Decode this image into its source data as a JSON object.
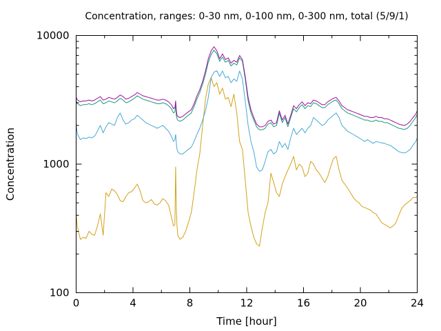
{
  "chart_data": {
    "type": "line",
    "title": "Concentration, ranges: 0-30 nm, 0-100 nm, 0-300 nm, total (5/9/1)",
    "xlabel": "Time [hour]",
    "ylabel": "Concentration",
    "xlim": [
      0,
      24
    ],
    "ylim": [
      100,
      10000
    ],
    "yscale": "log",
    "grid": false,
    "legend": "none",
    "x_ticks": [
      0,
      4,
      8,
      12,
      16,
      20,
      24
    ],
    "x_tick_labels": [
      "0",
      "4",
      "8",
      "12",
      "16",
      "20",
      "24"
    ],
    "y_ticks": [
      100,
      1000,
      10000
    ],
    "y_tick_labels": [
      "100",
      "1000",
      "10000"
    ],
    "x_minor_ticks": [
      2,
      6,
      10,
      14,
      18,
      22
    ],
    "y_minor_ticks": [
      200,
      300,
      400,
      500,
      600,
      700,
      800,
      900,
      2000,
      3000,
      4000,
      5000,
      6000,
      7000,
      8000,
      9000
    ],
    "series": [
      {
        "color": "#d4a017",
        "x": [
          0,
          0.1,
          0.3,
          0.5,
          0.7,
          0.9,
          1.1,
          1.3,
          1.5,
          1.7,
          1.9,
          2.1,
          2.3,
          2.5,
          2.7,
          2.9,
          3.1,
          3.3,
          3.5,
          3.7,
          3.9,
          4.1,
          4.3,
          4.5,
          4.7,
          4.9,
          5.1,
          5.3,
          5.5,
          5.7,
          5.9,
          6.1,
          6.3,
          6.5,
          6.7,
          6.85,
          6.95,
          7.0,
          7.05,
          7.1,
          7.15,
          7.3,
          7.5,
          7.7,
          7.9,
          8.1,
          8.3,
          8.5,
          8.7,
          8.9,
          9.1,
          9.3,
          9.5,
          9.7,
          9.9,
          10.1,
          10.3,
          10.5,
          10.7,
          10.9,
          11.1,
          11.3,
          11.5,
          11.7,
          11.9,
          12.1,
          12.3,
          12.5,
          12.7,
          12.9,
          13.1,
          13.3,
          13.5,
          13.7,
          13.9,
          14.1,
          14.3,
          14.5,
          14.7,
          14.9,
          15.1,
          15.3,
          15.5,
          15.7,
          15.9,
          16.1,
          16.3,
          16.5,
          16.7,
          16.9,
          17.1,
          17.3,
          17.5,
          17.7,
          17.9,
          18.1,
          18.3,
          18.5,
          18.7,
          18.9,
          19.1,
          19.3,
          19.5,
          19.7,
          19.9,
          20.1,
          20.3,
          20.5,
          20.7,
          20.9,
          21.1,
          21.3,
          21.5,
          21.7,
          21.9,
          22.1,
          22.3,
          22.5,
          22.7,
          22.9,
          23.1,
          23.3,
          23.5,
          23.7,
          23.9,
          24
        ],
        "values": [
          400,
          320,
          260,
          270,
          265,
          300,
          285,
          280,
          330,
          410,
          280,
          600,
          560,
          640,
          620,
          580,
          520,
          510,
          560,
          600,
          610,
          650,
          700,
          620,
          520,
          500,
          510,
          530,
          490,
          480,
          500,
          540,
          520,
          480,
          390,
          330,
          340,
          950,
          450,
          330,
          280,
          260,
          270,
          300,
          350,
          420,
          600,
          900,
          1200,
          2000,
          3200,
          4200,
          4700,
          4000,
          4300,
          3500,
          3900,
          3200,
          3300,
          2800,
          3500,
          2500,
          1500,
          1300,
          750,
          420,
          330,
          270,
          240,
          230,
          320,
          420,
          500,
          850,
          720,
          600,
          560,
          700,
          800,
          900,
          1000,
          1150,
          900,
          1000,
          950,
          800,
          850,
          1050,
          1000,
          900,
          850,
          780,
          720,
          800,
          950,
          1100,
          1150,
          900,
          750,
          700,
          650,
          600,
          550,
          520,
          500,
          470,
          460,
          450,
          440,
          420,
          410,
          380,
          350,
          340,
          330,
          320,
          330,
          350,
          400,
          450,
          480,
          500,
          520,
          550,
          550,
          560
        ],
        "stroke_width": 1
      },
      {
        "color": "#45a9d4",
        "x": [
          0,
          0.1,
          0.3,
          0.5,
          0.7,
          0.9,
          1.1,
          1.3,
          1.5,
          1.7,
          1.9,
          2.1,
          2.3,
          2.5,
          2.7,
          2.9,
          3.1,
          3.3,
          3.5,
          3.7,
          3.9,
          4.1,
          4.3,
          4.5,
          4.7,
          4.9,
          5.1,
          5.3,
          5.5,
          5.7,
          5.9,
          6.1,
          6.3,
          6.5,
          6.7,
          6.85,
          6.95,
          7.0,
          7.05,
          7.1,
          7.15,
          7.3,
          7.5,
          7.7,
          7.9,
          8.1,
          8.3,
          8.5,
          8.7,
          8.9,
          9.1,
          9.3,
          9.5,
          9.7,
          9.9,
          10.1,
          10.3,
          10.5,
          10.7,
          10.9,
          11.1,
          11.3,
          11.5,
          11.7,
          11.9,
          12.1,
          12.3,
          12.5,
          12.7,
          12.9,
          13.1,
          13.3,
          13.5,
          13.7,
          13.9,
          14.1,
          14.3,
          14.5,
          14.7,
          14.9,
          15.1,
          15.3,
          15.5,
          15.7,
          15.9,
          16.1,
          16.3,
          16.5,
          16.7,
          16.9,
          17.1,
          17.3,
          17.5,
          17.7,
          17.9,
          18.1,
          18.3,
          18.5,
          18.7,
          18.9,
          19.1,
          19.3,
          19.5,
          19.7,
          19.9,
          20.1,
          20.3,
          20.5,
          20.7,
          20.9,
          21.1,
          21.3,
          21.5,
          21.7,
          21.9,
          22.1,
          22.3,
          22.5,
          22.7,
          22.9,
          23.1,
          23.3,
          23.5,
          23.7,
          23.9,
          24
        ],
        "values": [
          2000,
          1700,
          1550,
          1600,
          1580,
          1620,
          1600,
          1650,
          1800,
          2000,
          1750,
          1950,
          2100,
          2050,
          2000,
          2300,
          2500,
          2200,
          2050,
          2100,
          2200,
          2250,
          2400,
          2300,
          2200,
          2100,
          2050,
          2000,
          1950,
          1900,
          1950,
          2000,
          1900,
          1800,
          1650,
          1500,
          1550,
          1700,
          1450,
          1300,
          1250,
          1200,
          1200,
          1250,
          1300,
          1350,
          1500,
          1700,
          1900,
          2200,
          2600,
          3300,
          4700,
          5200,
          5300,
          4800,
          5300,
          4700,
          4800,
          4300,
          4600,
          4400,
          5300,
          4600,
          3100,
          2000,
          1500,
          1250,
          950,
          880,
          900,
          1050,
          1250,
          1300,
          1200,
          1250,
          1500,
          1350,
          1450,
          1300,
          1600,
          1900,
          1700,
          1800,
          1900,
          1750,
          1900,
          2000,
          2300,
          2200,
          2100,
          2000,
          2050,
          2200,
          2300,
          2400,
          2500,
          2300,
          2000,
          1900,
          1800,
          1750,
          1700,
          1650,
          1600,
          1550,
          1500,
          1550,
          1500,
          1450,
          1500,
          1480,
          1460,
          1450,
          1420,
          1400,
          1350,
          1300,
          1250,
          1230,
          1220,
          1250,
          1300,
          1400,
          1500,
          1600
        ],
        "stroke_width": 1
      },
      {
        "color": "#1a9a78",
        "x": [
          0,
          0.1,
          0.3,
          0.5,
          0.7,
          0.9,
          1.1,
          1.3,
          1.5,
          1.7,
          1.9,
          2.1,
          2.3,
          2.5,
          2.7,
          2.9,
          3.1,
          3.3,
          3.5,
          3.7,
          3.9,
          4.1,
          4.3,
          4.5,
          4.7,
          4.9,
          5.1,
          5.3,
          5.5,
          5.7,
          5.9,
          6.1,
          6.3,
          6.5,
          6.7,
          6.85,
          6.95,
          7.0,
          7.05,
          7.1,
          7.15,
          7.3,
          7.5,
          7.7,
          7.9,
          8.1,
          8.3,
          8.5,
          8.7,
          8.9,
          9.1,
          9.3,
          9.5,
          9.7,
          9.9,
          10.1,
          10.3,
          10.5,
          10.7,
          10.9,
          11.1,
          11.3,
          11.5,
          11.7,
          11.9,
          12.1,
          12.3,
          12.5,
          12.7,
          12.9,
          13.1,
          13.3,
          13.5,
          13.7,
          13.9,
          14.1,
          14.3,
          14.5,
          14.7,
          14.9,
          15.1,
          15.3,
          15.5,
          15.7,
          15.9,
          16.1,
          16.3,
          16.5,
          16.7,
          16.9,
          17.1,
          17.3,
          17.5,
          17.7,
          17.9,
          18.1,
          18.3,
          18.5,
          18.7,
          18.9,
          19.1,
          19.3,
          19.5,
          19.7,
          19.9,
          20.1,
          20.3,
          20.5,
          20.7,
          20.9,
          21.1,
          21.3,
          21.5,
          21.7,
          21.9,
          22.1,
          22.3,
          22.5,
          22.7,
          22.9,
          23.1,
          23.3,
          23.5,
          23.7,
          23.9,
          24
        ],
        "values": [
          3100,
          2950,
          2850,
          2900,
          2900,
          2950,
          2900,
          2950,
          3050,
          3150,
          2950,
          3000,
          3100,
          3050,
          3000,
          3100,
          3250,
          3150,
          3000,
          3050,
          3150,
          3250,
          3400,
          3300,
          3200,
          3150,
          3100,
          3050,
          3000,
          2950,
          2950,
          3000,
          2950,
          2850,
          2700,
          2500,
          2550,
          2900,
          2400,
          2250,
          2200,
          2150,
          2200,
          2300,
          2400,
          2500,
          2800,
          3200,
          3600,
          4200,
          5000,
          6200,
          7100,
          7700,
          7200,
          6300,
          6800,
          6200,
          6400,
          5800,
          6100,
          5900,
          6700,
          6300,
          4600,
          3100,
          2500,
          2200,
          1950,
          1850,
          1850,
          1900,
          2050,
          2100,
          1950,
          2000,
          2500,
          2100,
          2300,
          1950,
          2300,
          2700,
          2550,
          2750,
          2900,
          2700,
          2850,
          2800,
          3000,
          2950,
          2850,
          2750,
          2750,
          2900,
          3000,
          3100,
          3150,
          2950,
          2700,
          2600,
          2500,
          2450,
          2400,
          2350,
          2300,
          2250,
          2200,
          2200,
          2150,
          2150,
          2200,
          2150,
          2150,
          2100,
          2100,
          2050,
          2000,
          1950,
          1900,
          1880,
          1860,
          1900,
          2000,
          2150,
          2300,
          2450
        ],
        "stroke_width": 1
      },
      {
        "color": "#9b0fa0",
        "x": [
          0,
          0.1,
          0.3,
          0.5,
          0.7,
          0.9,
          1.1,
          1.3,
          1.5,
          1.7,
          1.9,
          2.1,
          2.3,
          2.5,
          2.7,
          2.9,
          3.1,
          3.3,
          3.5,
          3.7,
          3.9,
          4.1,
          4.3,
          4.5,
          4.7,
          4.9,
          5.1,
          5.3,
          5.5,
          5.7,
          5.9,
          6.1,
          6.3,
          6.5,
          6.7,
          6.85,
          6.95,
          7.0,
          7.05,
          7.1,
          7.15,
          7.3,
          7.5,
          7.7,
          7.9,
          8.1,
          8.3,
          8.5,
          8.7,
          8.9,
          9.1,
          9.3,
          9.5,
          9.7,
          9.9,
          10.1,
          10.3,
          10.5,
          10.7,
          10.9,
          11.1,
          11.3,
          11.5,
          11.7,
          11.9,
          12.1,
          12.3,
          12.5,
          12.7,
          12.9,
          13.1,
          13.3,
          13.5,
          13.7,
          13.9,
          14.1,
          14.3,
          14.5,
          14.7,
          14.9,
          15.1,
          15.3,
          15.5,
          15.7,
          15.9,
          16.1,
          16.3,
          16.5,
          16.7,
          16.9,
          17.1,
          17.3,
          17.5,
          17.7,
          17.9,
          18.1,
          18.3,
          18.5,
          18.7,
          18.9,
          19.1,
          19.3,
          19.5,
          19.7,
          19.9,
          20.1,
          20.3,
          20.5,
          20.7,
          20.9,
          21.1,
          21.3,
          21.5,
          21.7,
          21.9,
          22.1,
          22.3,
          22.5,
          22.7,
          22.9,
          23.1,
          23.3,
          23.5,
          23.7,
          23.9,
          24
        ],
        "values": [
          3300,
          3150,
          3050,
          3100,
          3100,
          3150,
          3100,
          3150,
          3250,
          3350,
          3150,
          3200,
          3300,
          3250,
          3200,
          3300,
          3450,
          3350,
          3200,
          3250,
          3350,
          3450,
          3600,
          3500,
          3400,
          3350,
          3300,
          3250,
          3200,
          3150,
          3150,
          3200,
          3150,
          3050,
          2900,
          2700,
          2750,
          3100,
          2600,
          2400,
          2350,
          2300,
          2350,
          2450,
          2550,
          2650,
          2950,
          3400,
          3800,
          4400,
          5300,
          6600,
          7600,
          8200,
          7600,
          6600,
          7200,
          6500,
          6700,
          6100,
          6400,
          6200,
          7000,
          6500,
          4800,
          3300,
          2650,
          2300,
          2050,
          1950,
          1950,
          2000,
          2150,
          2200,
          2050,
          2100,
          2600,
          2200,
          2400,
          2050,
          2400,
          2850,
          2700,
          2900,
          3050,
          2850,
          3000,
          2950,
          3150,
          3100,
          3000,
          2900,
          2900,
          3050,
          3150,
          3250,
          3300,
          3100,
          2850,
          2750,
          2650,
          2600,
          2550,
          2500,
          2450,
          2400,
          2350,
          2350,
          2300,
          2300,
          2350,
          2300,
          2300,
          2250,
          2250,
          2200,
          2150,
          2100,
          2050,
          2020,
          2000,
          2050,
          2150,
          2300,
          2450,
          2600
        ],
        "stroke_width": 1
      }
    ]
  }
}
